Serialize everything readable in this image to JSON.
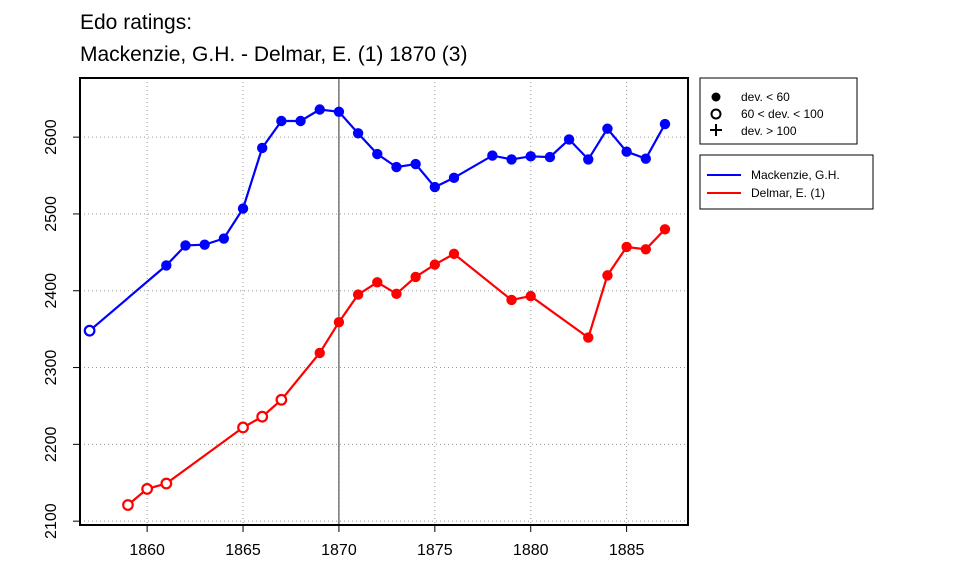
{
  "chart_data": {
    "type": "line",
    "title_line1": "Edo ratings:",
    "title_line2": "Mackenzie, G.H. - Delmar, E. (1) 1870 (3)",
    "xlabel": "",
    "ylabel": "",
    "xlim": [
      1856.5,
      1888.2
    ],
    "ylim": [
      2095,
      2677
    ],
    "x_ticks": [
      1860,
      1865,
      1870,
      1875,
      1880,
      1885
    ],
    "y_ticks": [
      2100,
      2200,
      2300,
      2400,
      2500,
      2600
    ],
    "grid": true,
    "reference_line_x": 1870,
    "symbol_legend": [
      {
        "symbol": "filled-circle",
        "label": "dev. < 60"
      },
      {
        "symbol": "open-circle",
        "label": "60 < dev. < 100"
      },
      {
        "symbol": "plus",
        "label": "dev. > 100"
      }
    ],
    "series": [
      {
        "name": "Mackenzie, G.H.",
        "color": "#0000ff",
        "points": [
          {
            "x": 1857,
            "y": 2348,
            "marker": "open"
          },
          {
            "x": 1861,
            "y": 2433,
            "marker": "filled"
          },
          {
            "x": 1862,
            "y": 2459,
            "marker": "filled"
          },
          {
            "x": 1863,
            "y": 2460,
            "marker": "filled"
          },
          {
            "x": 1864,
            "y": 2468,
            "marker": "filled"
          },
          {
            "x": 1865,
            "y": 2507,
            "marker": "filled"
          },
          {
            "x": 1866,
            "y": 2586,
            "marker": "filled"
          },
          {
            "x": 1867,
            "y": 2621,
            "marker": "filled"
          },
          {
            "x": 1868,
            "y": 2621,
            "marker": "filled"
          },
          {
            "x": 1869,
            "y": 2636,
            "marker": "filled"
          },
          {
            "x": 1870,
            "y": 2633,
            "marker": "filled"
          },
          {
            "x": 1871,
            "y": 2605,
            "marker": "filled"
          },
          {
            "x": 1872,
            "y": 2578,
            "marker": "filled"
          },
          {
            "x": 1873,
            "y": 2561,
            "marker": "filled"
          },
          {
            "x": 1874,
            "y": 2565,
            "marker": "filled"
          },
          {
            "x": 1875,
            "y": 2535,
            "marker": "filled"
          },
          {
            "x": 1876,
            "y": 2547,
            "marker": "filled"
          },
          {
            "x": 1878,
            "y": 2576,
            "marker": "filled"
          },
          {
            "x": 1879,
            "y": 2571,
            "marker": "filled"
          },
          {
            "x": 1880,
            "y": 2575,
            "marker": "filled"
          },
          {
            "x": 1881,
            "y": 2574,
            "marker": "filled"
          },
          {
            "x": 1882,
            "y": 2597,
            "marker": "filled"
          },
          {
            "x": 1883,
            "y": 2571,
            "marker": "filled"
          },
          {
            "x": 1884,
            "y": 2611,
            "marker": "filled"
          },
          {
            "x": 1885,
            "y": 2581,
            "marker": "filled"
          },
          {
            "x": 1886,
            "y": 2572,
            "marker": "filled"
          },
          {
            "x": 1887,
            "y": 2617,
            "marker": "filled"
          }
        ]
      },
      {
        "name": "Delmar, E. (1)",
        "color": "#ff0000",
        "points": [
          {
            "x": 1859,
            "y": 2121,
            "marker": "open"
          },
          {
            "x": 1860,
            "y": 2142,
            "marker": "open"
          },
          {
            "x": 1861,
            "y": 2149,
            "marker": "open"
          },
          {
            "x": 1865,
            "y": 2222,
            "marker": "open"
          },
          {
            "x": 1866,
            "y": 2236,
            "marker": "open"
          },
          {
            "x": 1867,
            "y": 2258,
            "marker": "open"
          },
          {
            "x": 1869,
            "y": 2319,
            "marker": "filled"
          },
          {
            "x": 1870,
            "y": 2359,
            "marker": "filled"
          },
          {
            "x": 1871,
            "y": 2395,
            "marker": "filled"
          },
          {
            "x": 1872,
            "y": 2411,
            "marker": "filled"
          },
          {
            "x": 1873,
            "y": 2396,
            "marker": "filled"
          },
          {
            "x": 1874,
            "y": 2418,
            "marker": "filled"
          },
          {
            "x": 1875,
            "y": 2434,
            "marker": "filled"
          },
          {
            "x": 1876,
            "y": 2448,
            "marker": "filled"
          },
          {
            "x": 1879,
            "y": 2388,
            "marker": "filled"
          },
          {
            "x": 1880,
            "y": 2393,
            "marker": "filled"
          },
          {
            "x": 1883,
            "y": 2339,
            "marker": "filled"
          },
          {
            "x": 1884,
            "y": 2420,
            "marker": "filled"
          },
          {
            "x": 1885,
            "y": 2457,
            "marker": "filled"
          },
          {
            "x": 1886,
            "y": 2454,
            "marker": "filled"
          },
          {
            "x": 1887,
            "y": 2480,
            "marker": "filled"
          }
        ]
      }
    ]
  }
}
